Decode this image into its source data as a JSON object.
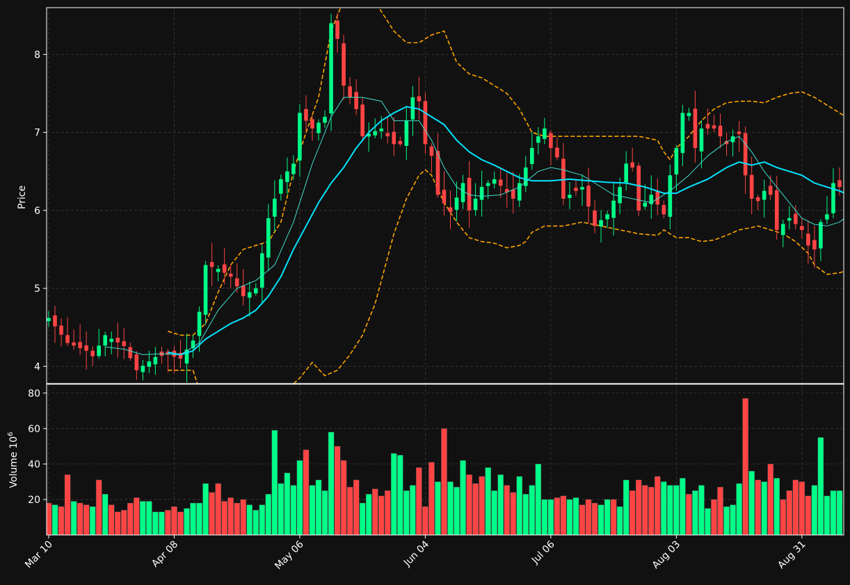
{
  "chart_data": {
    "type": "candlestick",
    "panels": [
      "price",
      "volume"
    ],
    "ylabel_price": "Price",
    "ylabel_volume": "Volume  10",
    "ylabel_volume_exp": "6",
    "ylim_price": [
      3.78,
      8.6
    ],
    "price_ticks": [
      "4",
      "5",
      "6",
      "7",
      "8"
    ],
    "ylim_volume": [
      0,
      85
    ],
    "volume_ticks": [
      "20",
      "40",
      "60",
      "80"
    ],
    "x_ticks": [
      {
        "index": 0,
        "label": "Mar 10"
      },
      {
        "index": 20,
        "label": "Apr 08"
      },
      {
        "index": 40,
        "label": "May 06"
      },
      {
        "index": 60,
        "label": "Jun 04"
      },
      {
        "index": 80,
        "label": "Jul 06"
      },
      {
        "index": 100,
        "label": "Aug 03"
      },
      {
        "index": 120,
        "label": "Aug 31"
      }
    ],
    "grid": true,
    "colors": {
      "up": "#00ff88",
      "down": "#ff4444",
      "ma_fast": "#40e0d0",
      "ma_slow": "#00e5ff",
      "bands": "#ffa500",
      "background": "#111111",
      "grid": "#3a3a3a",
      "axis": "#ffffff"
    },
    "close_path": [
      [
        0,
        4.62
      ],
      [
        3,
        4.3
      ],
      [
        6,
        4.2
      ],
      [
        7,
        4.13
      ],
      [
        9,
        4.4
      ],
      [
        12,
        4.26
      ],
      [
        14,
        3.95
      ],
      [
        17,
        4.12
      ],
      [
        19,
        4.15
      ],
      [
        21,
        4.1
      ],
      [
        23,
        4.33
      ],
      [
        24,
        4.7
      ],
      [
        25,
        5.3
      ],
      [
        27,
        5.25
      ],
      [
        29,
        5.15
      ],
      [
        31,
        4.9
      ],
      [
        33,
        5.0
      ],
      [
        35,
        5.9
      ],
      [
        37,
        6.4
      ],
      [
        39,
        6.6
      ],
      [
        40,
        7.25
      ],
      [
        42,
        7.05
      ],
      [
        44,
        7.2
      ],
      [
        45,
        8.4
      ],
      [
        46,
        8.2
      ],
      [
        47,
        7.6
      ],
      [
        49,
        7.3
      ],
      [
        50,
        6.95
      ],
      [
        53,
        7.05
      ],
      [
        55,
        6.85
      ],
      [
        56,
        6.85
      ],
      [
        58,
        7.45
      ],
      [
        59,
        7.4
      ],
      [
        60,
        6.85
      ],
      [
        61,
        6.7
      ],
      [
        62,
        6.2
      ],
      [
        64,
        5.98
      ],
      [
        66,
        6.35
      ],
      [
        67,
        6.0
      ],
      [
        69,
        6.3
      ],
      [
        71,
        6.4
      ],
      [
        74,
        6.15
      ],
      [
        76,
        6.55
      ],
      [
        77,
        6.8
      ],
      [
        78,
        6.95
      ],
      [
        79,
        7.05
      ],
      [
        80,
        6.8
      ],
      [
        81,
        6.68
      ],
      [
        82,
        6.15
      ],
      [
        85,
        6.3
      ],
      [
        87,
        5.8
      ],
      [
        89,
        5.95
      ],
      [
        91,
        6.3
      ],
      [
        92,
        6.6
      ],
      [
        93,
        6.55
      ],
      [
        94,
        6.0
      ],
      [
        96,
        6.2
      ],
      [
        98,
        5.95
      ],
      [
        99,
        6.45
      ],
      [
        100,
        6.8
      ],
      [
        101,
        7.25
      ],
      [
        102,
        7.25
      ],
      [
        103,
        6.8
      ],
      [
        104,
        7.05
      ],
      [
        106,
        7.05
      ],
      [
        107,
        6.95
      ],
      [
        108,
        6.85
      ],
      [
        109,
        6.95
      ],
      [
        110,
        6.98
      ],
      [
        111,
        6.45
      ],
      [
        112,
        6.15
      ],
      [
        113,
        6.12
      ],
      [
        114,
        6.25
      ],
      [
        115,
        6.2
      ],
      [
        116,
        5.75
      ],
      [
        118,
        5.9
      ],
      [
        120,
        5.75
      ],
      [
        121,
        5.55
      ],
      [
        122,
        5.5
      ],
      [
        123,
        5.85
      ],
      [
        124,
        5.95
      ],
      [
        125,
        6.35
      ],
      [
        126,
        6.3
      ],
      [
        127,
        6.55
      ],
      [
        128,
        6.48
      ]
    ],
    "ma_fast_path": [
      [
        9,
        4.25
      ],
      [
        12,
        4.22
      ],
      [
        15,
        4.15
      ],
      [
        18,
        4.16
      ],
      [
        21,
        4.15
      ],
      [
        24,
        4.3
      ],
      [
        27,
        4.72
      ],
      [
        30,
        5.0
      ],
      [
        33,
        5.1
      ],
      [
        36,
        5.3
      ],
      [
        39,
        5.85
      ],
      [
        42,
        6.6
      ],
      [
        45,
        7.2
      ],
      [
        47,
        7.45
      ],
      [
        50,
        7.45
      ],
      [
        53,
        7.4
      ],
      [
        55,
        7.15
      ],
      [
        57,
        7.15
      ],
      [
        59,
        7.15
      ],
      [
        61,
        6.9
      ],
      [
        63,
        6.55
      ],
      [
        65,
        6.3
      ],
      [
        67,
        6.2
      ],
      [
        69,
        6.18
      ],
      [
        72,
        6.2
      ],
      [
        75,
        6.3
      ],
      [
        78,
        6.5
      ],
      [
        80,
        6.55
      ],
      [
        82,
        6.52
      ],
      [
        85,
        6.45
      ],
      [
        87,
        6.35
      ],
      [
        90,
        6.2
      ],
      [
        93,
        6.15
      ],
      [
        96,
        6.1
      ],
      [
        99,
        6.25
      ],
      [
        102,
        6.45
      ],
      [
        105,
        6.7
      ],
      [
        108,
        6.88
      ],
      [
        110,
        6.95
      ],
      [
        112,
        6.75
      ],
      [
        114,
        6.5
      ],
      [
        116,
        6.3
      ],
      [
        118,
        6.1
      ],
      [
        120,
        5.9
      ],
      [
        122,
        5.82
      ],
      [
        124,
        5.8
      ],
      [
        126,
        5.85
      ],
      [
        128,
        5.98
      ]
    ],
    "ma_slow_path": [
      [
        19,
        4.18
      ],
      [
        21,
        4.15
      ],
      [
        23,
        4.2
      ],
      [
        25,
        4.35
      ],
      [
        27,
        4.45
      ],
      [
        29,
        4.55
      ],
      [
        31,
        4.62
      ],
      [
        33,
        4.72
      ],
      [
        35,
        4.9
      ],
      [
        37,
        5.15
      ],
      [
        39,
        5.5
      ],
      [
        41,
        5.8
      ],
      [
        43,
        6.1
      ],
      [
        45,
        6.35
      ],
      [
        47,
        6.55
      ],
      [
        49,
        6.8
      ],
      [
        51,
        7.0
      ],
      [
        53,
        7.15
      ],
      [
        55,
        7.25
      ],
      [
        57,
        7.33
      ],
      [
        59,
        7.3
      ],
      [
        61,
        7.2
      ],
      [
        63,
        7.1
      ],
      [
        65,
        6.9
      ],
      [
        67,
        6.75
      ],
      [
        69,
        6.65
      ],
      [
        71,
        6.58
      ],
      [
        73,
        6.5
      ],
      [
        75,
        6.42
      ],
      [
        77,
        6.38
      ],
      [
        80,
        6.38
      ],
      [
        83,
        6.4
      ],
      [
        86,
        6.38
      ],
      [
        89,
        6.36
      ],
      [
        92,
        6.35
      ],
      [
        95,
        6.3
      ],
      [
        98,
        6.22
      ],
      [
        100,
        6.22
      ],
      [
        102,
        6.3
      ],
      [
        105,
        6.4
      ],
      [
        108,
        6.55
      ],
      [
        110,
        6.62
      ],
      [
        112,
        6.58
      ],
      [
        114,
        6.62
      ],
      [
        116,
        6.55
      ],
      [
        118,
        6.5
      ],
      [
        120,
        6.45
      ],
      [
        122,
        6.35
      ],
      [
        124,
        6.3
      ],
      [
        126,
        6.25
      ],
      [
        128,
        6.18
      ]
    ],
    "upper_band_path": [
      [
        19,
        4.45
      ],
      [
        21,
        4.4
      ],
      [
        23,
        4.4
      ],
      [
        25,
        4.55
      ],
      [
        27,
        4.95
      ],
      [
        29,
        5.3
      ],
      [
        31,
        5.5
      ],
      [
        33,
        5.55
      ],
      [
        35,
        5.6
      ],
      [
        37,
        5.85
      ],
      [
        39,
        6.5
      ],
      [
        41,
        7.0
      ],
      [
        43,
        7.45
      ],
      [
        45,
        8.3
      ],
      [
        47,
        8.7
      ],
      [
        49,
        8.9
      ],
      [
        51,
        8.8
      ],
      [
        53,
        8.55
      ],
      [
        55,
        8.3
      ],
      [
        57,
        8.15
      ],
      [
        59,
        8.15
      ],
      [
        61,
        8.25
      ],
      [
        63,
        8.3
      ],
      [
        65,
        7.9
      ],
      [
        67,
        7.75
      ],
      [
        69,
        7.7
      ],
      [
        71,
        7.6
      ],
      [
        73,
        7.5
      ],
      [
        75,
        7.3
      ],
      [
        77,
        7.0
      ],
      [
        79,
        6.95
      ],
      [
        82,
        6.95
      ],
      [
        85,
        6.95
      ],
      [
        88,
        6.95
      ],
      [
        91,
        6.95
      ],
      [
        94,
        6.95
      ],
      [
        97,
        6.9
      ],
      [
        98,
        6.75
      ],
      [
        99,
        6.65
      ],
      [
        100,
        6.8
      ],
      [
        102,
        6.95
      ],
      [
        104,
        7.15
      ],
      [
        106,
        7.3
      ],
      [
        108,
        7.38
      ],
      [
        110,
        7.4
      ],
      [
        112,
        7.4
      ],
      [
        114,
        7.38
      ],
      [
        116,
        7.45
      ],
      [
        118,
        7.5
      ],
      [
        120,
        7.52
      ],
      [
        122,
        7.45
      ],
      [
        124,
        7.35
      ],
      [
        126,
        7.25
      ],
      [
        128,
        7.15
      ]
    ],
    "lower_band_path": [
      [
        19,
        3.95
      ],
      [
        21,
        3.95
      ],
      [
        23,
        3.95
      ],
      [
        24,
        3.7
      ],
      [
        26,
        3.4
      ],
      [
        28,
        3.2
      ],
      [
        30,
        3.1
      ],
      [
        32,
        3.1
      ],
      [
        34,
        3.1
      ],
      [
        36,
        3.4
      ],
      [
        38,
        3.7
      ],
      [
        40,
        3.85
      ],
      [
        42,
        4.05
      ],
      [
        44,
        3.88
      ],
      [
        46,
        3.95
      ],
      [
        48,
        4.15
      ],
      [
        50,
        4.4
      ],
      [
        52,
        4.8
      ],
      [
        54,
        5.4
      ],
      [
        55,
        5.7
      ],
      [
        57,
        6.15
      ],
      [
        59,
        6.45
      ],
      [
        60,
        6.52
      ],
      [
        61,
        6.45
      ],
      [
        63,
        6.1
      ],
      [
        65,
        5.85
      ],
      [
        67,
        5.65
      ],
      [
        69,
        5.6
      ],
      [
        71,
        5.58
      ],
      [
        73,
        5.52
      ],
      [
        75,
        5.55
      ],
      [
        76,
        5.6
      ],
      [
        77,
        5.72
      ],
      [
        79,
        5.8
      ],
      [
        82,
        5.8
      ],
      [
        85,
        5.85
      ],
      [
        88,
        5.8
      ],
      [
        91,
        5.75
      ],
      [
        94,
        5.7
      ],
      [
        97,
        5.68
      ],
      [
        98,
        5.75
      ],
      [
        100,
        5.65
      ],
      [
        102,
        5.65
      ],
      [
        104,
        5.6
      ],
      [
        106,
        5.62
      ],
      [
        108,
        5.68
      ],
      [
        110,
        5.75
      ],
      [
        112,
        5.78
      ],
      [
        113,
        5.8
      ],
      [
        115,
        5.75
      ],
      [
        117,
        5.7
      ],
      [
        119,
        5.6
      ],
      [
        121,
        5.45
      ],
      [
        122,
        5.3
      ],
      [
        124,
        5.18
      ],
      [
        126,
        5.2
      ],
      [
        128,
        5.25
      ]
    ],
    "volume": [
      18,
      17,
      16,
      34,
      19,
      18,
      17,
      16,
      31,
      23,
      17,
      13,
      14,
      18,
      21,
      19,
      19,
      13,
      13,
      14,
      16,
      13,
      15,
      18,
      18,
      29,
      24,
      29,
      19,
      21,
      18,
      20,
      17,
      14,
      17,
      23,
      59,
      29,
      35,
      28,
      42,
      48,
      28,
      31,
      25,
      58,
      50,
      42,
      27,
      31,
      18,
      23,
      26,
      22,
      25,
      46,
      45,
      25,
      28,
      38,
      16,
      41,
      30,
      60,
      30,
      27,
      42,
      34,
      29,
      33,
      38,
      25,
      34,
      28,
      24,
      33,
      23,
      28,
      40,
      20,
      20,
      21,
      22,
      20,
      21,
      17,
      20,
      18,
      17,
      20,
      20,
      16,
      31,
      25,
      31,
      28,
      27,
      33,
      30,
      28,
      28,
      32,
      23,
      25,
      28,
      15,
      20,
      27,
      16,
      17,
      29,
      77,
      36,
      31,
      30,
      40,
      32,
      20,
      25,
      31,
      30,
      22,
      28,
      55,
      22,
      25,
      25
    ],
    "volume_dir": [
      0,
      1,
      0,
      0,
      1,
      0,
      0,
      1,
      0,
      1,
      0,
      0,
      0,
      0,
      0,
      1,
      1,
      1,
      1,
      0,
      0,
      0,
      1,
      1,
      1,
      1,
      0,
      0,
      0,
      0,
      0,
      0,
      1,
      1,
      1,
      1,
      1,
      1,
      1,
      1,
      1,
      0,
      1,
      1,
      1,
      1,
      0,
      0,
      0,
      0,
      1,
      1,
      0,
      0,
      0,
      1,
      1,
      1,
      1,
      0,
      0,
      0,
      1,
      0,
      1,
      1,
      1,
      0,
      0,
      0,
      1,
      1,
      1,
      0,
      0,
      1,
      1,
      1,
      1,
      1,
      1,
      0,
      0,
      1,
      1,
      0,
      0,
      0,
      1,
      1,
      0,
      1,
      1,
      0,
      0,
      0,
      0,
      0,
      1,
      1,
      1,
      1,
      0,
      1,
      1,
      1,
      0,
      0,
      1,
      1,
      1,
      0,
      1,
      0,
      1,
      0,
      1,
      0,
      0,
      0,
      0,
      0,
      1,
      1,
      1,
      1,
      1
    ]
  }
}
